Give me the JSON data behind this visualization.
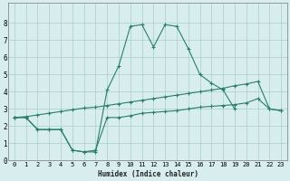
{
  "xlabel": "Humidex (Indice chaleur)",
  "x_values": [
    0,
    1,
    2,
    3,
    4,
    5,
    6,
    7,
    8,
    9,
    10,
    11,
    12,
    13,
    14,
    15,
    16,
    17,
    18,
    19,
    20,
    21,
    22,
    23
  ],
  "line1_y": [
    2.5,
    2.5,
    1.8,
    1.8,
    1.8,
    0.6,
    0.5,
    0.5,
    4.1,
    5.5,
    7.8,
    7.9,
    6.6,
    7.9,
    7.8,
    6.5,
    5.0,
    4.5,
    4.1,
    3.0,
    null,
    null,
    null,
    null
  ],
  "line2_y": [
    2.5,
    2.5,
    1.8,
    1.8,
    1.8,
    0.6,
    0.5,
    0.6,
    2.5,
    2.5,
    2.6,
    2.75,
    2.8,
    2.85,
    2.9,
    3.0,
    3.1,
    3.15,
    3.2,
    3.25,
    3.35,
    3.6,
    3.0,
    2.9
  ],
  "line3_y": [
    2.5,
    2.55,
    2.65,
    2.75,
    2.85,
    2.95,
    3.05,
    3.1,
    3.2,
    3.3,
    3.4,
    3.5,
    3.6,
    3.7,
    3.8,
    3.9,
    4.0,
    4.1,
    4.2,
    4.35,
    4.45,
    4.6,
    3.0,
    2.9
  ],
  "line_color": "#2a7d6e",
  "bg_color": "#d8eeee",
  "grid_color": "#aacccc",
  "ylim": [
    0,
    9
  ],
  "xlim": [
    -0.5,
    23.5
  ],
  "yticks": [
    0,
    1,
    2,
    3,
    4,
    5,
    6,
    7,
    8
  ],
  "xticks": [
    0,
    1,
    2,
    3,
    4,
    5,
    6,
    7,
    8,
    9,
    10,
    11,
    12,
    13,
    14,
    15,
    16,
    17,
    18,
    19,
    20,
    21,
    22,
    23
  ]
}
